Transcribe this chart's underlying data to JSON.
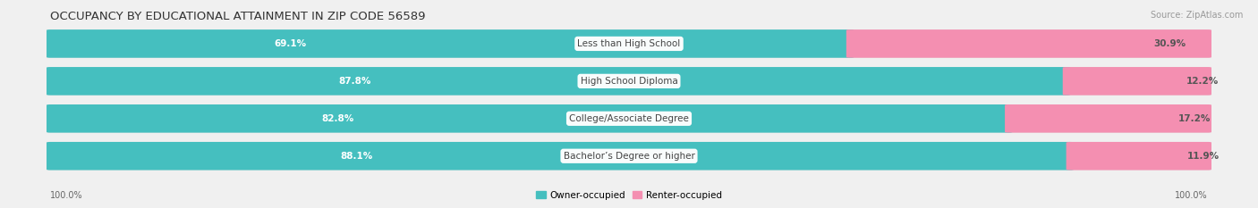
{
  "title": "OCCUPANCY BY EDUCATIONAL ATTAINMENT IN ZIP CODE 56589",
  "source": "Source: ZipAtlas.com",
  "categories": [
    "Less than High School",
    "High School Diploma",
    "College/Associate Degree",
    "Bachelor’s Degree or higher"
  ],
  "owner_pct": [
    69.1,
    87.8,
    82.8,
    88.1
  ],
  "renter_pct": [
    30.9,
    12.2,
    17.2,
    11.9
  ],
  "owner_color": "#45bfbf",
  "renter_color": "#f48fb1",
  "bg_color": "#f0f0f0",
  "bar_bg_color": "#e0e0e0",
  "title_fontsize": 9.5,
  "label_fontsize": 7.5,
  "axis_label_fontsize": 7,
  "legend_fontsize": 7.5,
  "source_fontsize": 7,
  "x_left_label": "100.0%",
  "x_right_label": "100.0%"
}
